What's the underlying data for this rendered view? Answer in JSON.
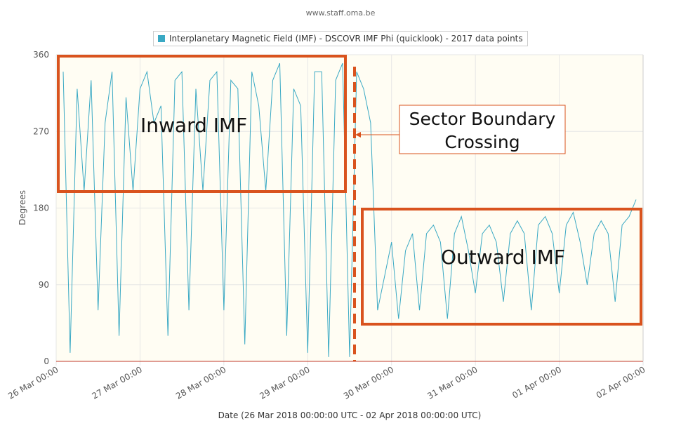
{
  "credit": "www.staff.oma.be",
  "legend": {
    "label": "Interplanetary Magnetic Field (IMF) - DSCOVR IMF Phi (quicklook) - 2017 data points",
    "color": "#3aa9c4"
  },
  "chart_data": {
    "type": "line",
    "title": "",
    "xlabel": "Date (26 Mar 2018 00:00:00 UTC - 02 Apr 2018 00:00:00 UTC)",
    "ylabel": "Degrees",
    "ylim": [
      0,
      360
    ],
    "xlim_days": [
      0,
      7
    ],
    "y_ticks": [
      "0",
      "90",
      "180",
      "270",
      "360"
    ],
    "x_ticks": [
      "26 Mar 00:00",
      "27 Mar 00:00",
      "28 Mar 00:00",
      "29 Mar 00:00",
      "30 Mar 00:00",
      "31 Mar 00:00",
      "01 Apr 00:00",
      "02 Apr 00:00"
    ],
    "grid": true,
    "legend_position": "top-center",
    "series": [
      {
        "name": "Interplanetary Magnetic Field (IMF) - DSCOVR IMF Phi (quicklook) - 2017 data points",
        "color": "#3aa9c4",
        "x": [
          "26 Mar 02:00",
          "26 Mar 04:00",
          "26 Mar 06:00",
          "26 Mar 08:00",
          "26 Mar 10:00",
          "26 Mar 12:00",
          "26 Mar 14:00",
          "26 Mar 16:00",
          "26 Mar 18:00",
          "26 Mar 20:00",
          "26 Mar 22:00",
          "27 Mar 00:00",
          "27 Mar 02:00",
          "27 Mar 04:00",
          "27 Mar 06:00",
          "27 Mar 08:00",
          "27 Mar 10:00",
          "27 Mar 12:00",
          "27 Mar 14:00",
          "27 Mar 16:00",
          "27 Mar 18:00",
          "27 Mar 20:00",
          "27 Mar 22:00",
          "28 Mar 00:00",
          "28 Mar 02:00",
          "28 Mar 04:00",
          "28 Mar 06:00",
          "28 Mar 08:00",
          "28 Mar 10:00",
          "28 Mar 12:00",
          "28 Mar 14:00",
          "28 Mar 16:00",
          "28 Mar 18:00",
          "28 Mar 20:00",
          "28 Mar 22:00",
          "29 Mar 00:00",
          "29 Mar 02:00",
          "29 Mar 04:00",
          "29 Mar 06:00",
          "29 Mar 08:00",
          "29 Mar 10:00",
          "29 Mar 12:00",
          "29 Mar 14:00",
          "29 Mar 16:00",
          "29 Mar 18:00",
          "29 Mar 20:00",
          "29 Mar 22:00",
          "30 Mar 00:00",
          "30 Mar 02:00",
          "30 Mar 04:00",
          "30 Mar 06:00",
          "30 Mar 08:00",
          "30 Mar 10:00",
          "30 Mar 12:00",
          "30 Mar 14:00",
          "30 Mar 16:00",
          "30 Mar 18:00",
          "30 Mar 20:00",
          "30 Mar 22:00",
          "31 Mar 00:00",
          "31 Mar 02:00",
          "31 Mar 04:00",
          "31 Mar 06:00",
          "31 Mar 08:00",
          "31 Mar 10:00",
          "31 Mar 12:00",
          "31 Mar 14:00",
          "31 Mar 16:00",
          "31 Mar 18:00",
          "31 Mar 20:00",
          "31 Mar 22:00",
          "01 Apr 00:00",
          "01 Apr 02:00",
          "01 Apr 04:00",
          "01 Apr 06:00",
          "01 Apr 08:00",
          "01 Apr 10:00",
          "01 Apr 12:00",
          "01 Apr 14:00",
          "01 Apr 16:00",
          "01 Apr 18:00",
          "01 Apr 20:00",
          "01 Apr 22:00"
        ],
        "values": [
          340,
          10,
          320,
          200,
          330,
          60,
          280,
          340,
          30,
          310,
          200,
          320,
          340,
          280,
          300,
          30,
          330,
          340,
          60,
          320,
          200,
          330,
          340,
          60,
          330,
          320,
          20,
          340,
          300,
          200,
          330,
          350,
          30,
          320,
          300,
          10,
          340,
          340,
          5,
          330,
          350,
          5,
          340,
          320,
          280,
          60,
          100,
          140,
          50,
          130,
          150,
          60,
          150,
          160,
          140,
          50,
          150,
          170,
          130,
          80,
          150,
          160,
          140,
          70,
          150,
          165,
          150,
          60,
          160,
          170,
          150,
          80,
          160,
          175,
          140,
          90,
          150,
          165,
          150,
          70,
          160,
          170,
          190
        ]
      }
    ]
  },
  "annotations": {
    "inward_label": "Inward IMF",
    "outward_label": "Outward IMF",
    "boundary_label_line1": "Sector Boundary",
    "boundary_label_line2": "Crossing",
    "accent_color": "#d9531e"
  }
}
